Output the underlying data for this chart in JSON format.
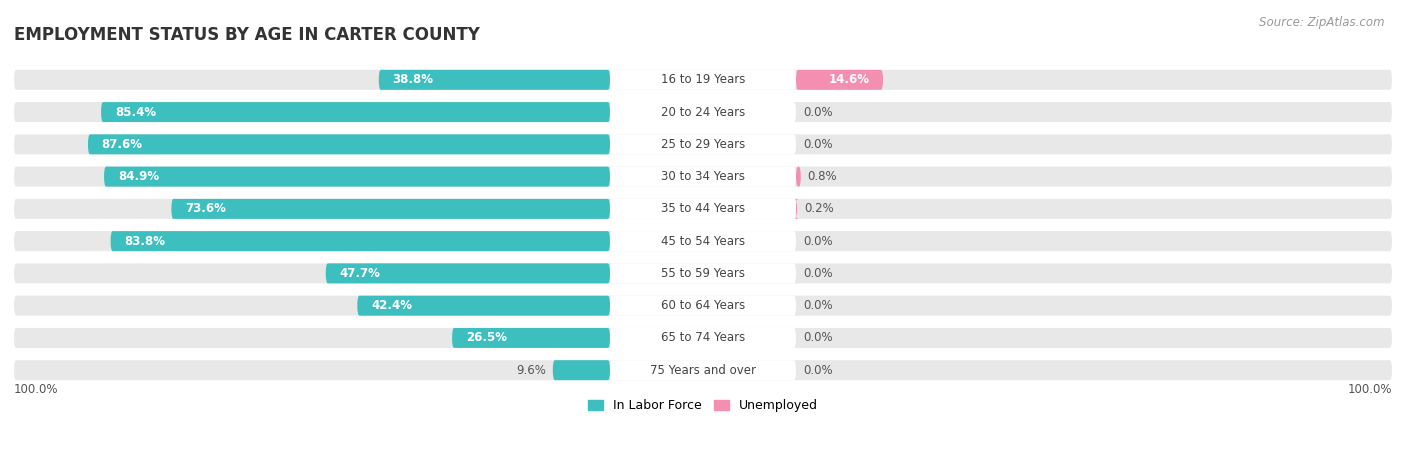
{
  "title": "EMPLOYMENT STATUS BY AGE IN CARTER COUNTY",
  "source": "Source: ZipAtlas.com",
  "categories": [
    "16 to 19 Years",
    "20 to 24 Years",
    "25 to 29 Years",
    "30 to 34 Years",
    "35 to 44 Years",
    "45 to 54 Years",
    "55 to 59 Years",
    "60 to 64 Years",
    "65 to 74 Years",
    "75 Years and over"
  ],
  "labor_force": [
    38.8,
    85.4,
    87.6,
    84.9,
    73.6,
    83.8,
    47.7,
    42.4,
    26.5,
    9.6
  ],
  "unemployed": [
    14.6,
    0.0,
    0.0,
    0.8,
    0.2,
    0.0,
    0.0,
    0.0,
    0.0,
    0.0
  ],
  "labor_color": "#3dbfbf",
  "unemployed_color": "#f48fb1",
  "row_bg_color": "#e8e8e8",
  "label_white_color": "#ffffff",
  "label_dark_color": "#555555",
  "axis_label_left": "100.0%",
  "axis_label_right": "100.0%",
  "legend_labor": "In Labor Force",
  "legend_unemployed": "Unemployed",
  "title_fontsize": 12,
  "source_fontsize": 8.5,
  "bar_label_fontsize": 8.5,
  "category_fontsize": 8.5,
  "legend_fontsize": 9,
  "axis_tick_fontsize": 8.5
}
